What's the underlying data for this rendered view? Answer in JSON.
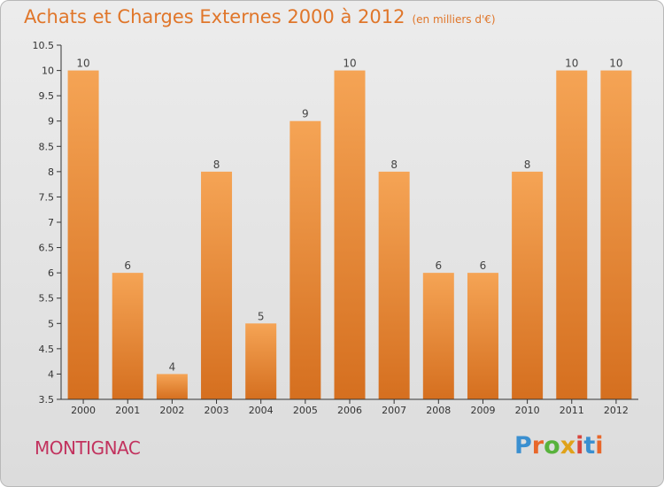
{
  "title": "Achats et Charges Externes 2000 à 2012",
  "unit": "(en milliers d'€)",
  "town": "MONTIGNAC",
  "logo": {
    "text": "Proxiti",
    "letter_colors": [
      "#3a8fd0",
      "#e8672a",
      "#58b23c",
      "#e0a21a",
      "#d8463c",
      "#3a8fd0",
      "#e8672a"
    ]
  },
  "colors": {
    "bar_top": "#f5a455",
    "bar_bottom": "#d56f1f",
    "title": "#e0762a",
    "town": "#c2325e",
    "axis": "#333333",
    "grid": "#c8c8c8"
  },
  "chart_data": {
    "type": "bar",
    "categories": [
      "2000",
      "2001",
      "2002",
      "2003",
      "2004",
      "2005",
      "2006",
      "2007",
      "2008",
      "2009",
      "2010",
      "2011",
      "2012"
    ],
    "values": [
      10,
      6,
      4,
      8,
      5,
      9,
      10,
      8,
      6,
      6,
      8,
      10,
      10
    ],
    "value_labels": [
      "10",
      "6",
      "4",
      "8",
      "5",
      "9",
      "10",
      "8",
      "6",
      "6",
      "8",
      "10",
      "10"
    ],
    "title": "Achats et Charges Externes 2000 à 2012",
    "xlabel": "",
    "ylabel": "",
    "ylim": [
      3.5,
      10.5
    ],
    "yticks": [
      "3.5",
      "4",
      "4.5",
      "5",
      "5.5",
      "6",
      "6.5",
      "7",
      "7.5",
      "8",
      "8.5",
      "9",
      "9.5",
      "10",
      "10.5"
    ],
    "grid": false
  }
}
